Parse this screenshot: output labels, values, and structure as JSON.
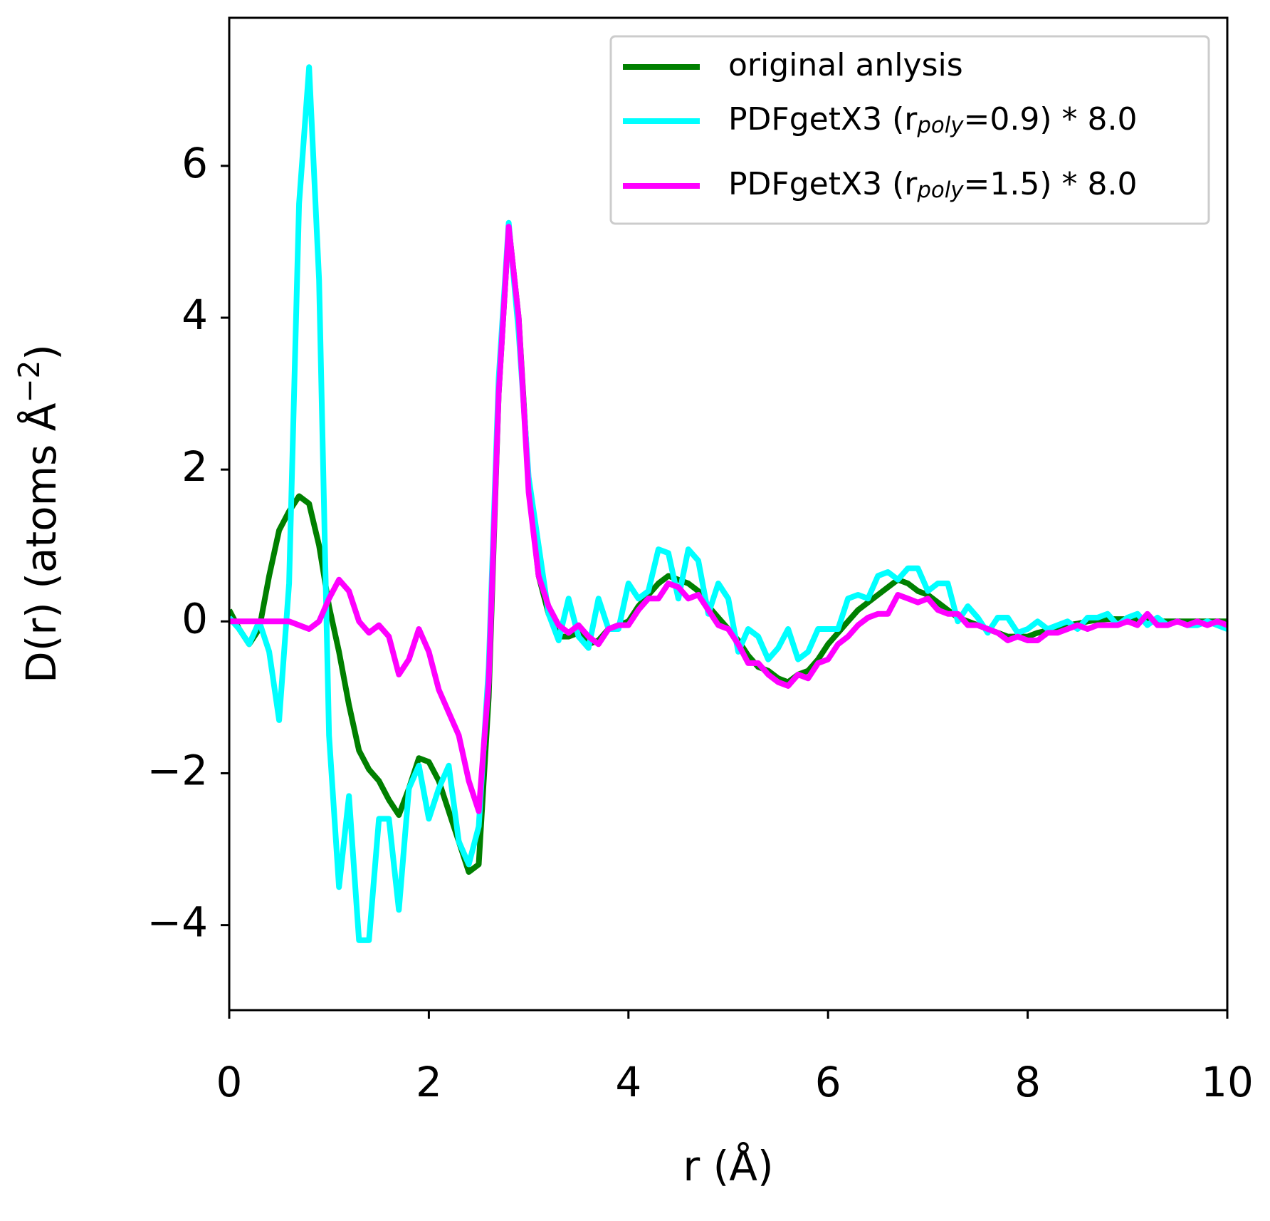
{
  "chart_data": {
    "type": "line",
    "xlabel": "r (Å)",
    "ylabel": "D(r) (atoms Å^{−2})",
    "x": [
      0,
      0.1,
      0.2,
      0.3,
      0.4,
      0.5,
      0.6,
      0.7,
      0.8,
      0.9,
      1,
      1.1,
      1.2,
      1.3,
      1.4,
      1.5,
      1.6,
      1.7,
      1.8,
      1.9,
      2,
      2.1,
      2.2,
      2.3,
      2.4,
      2.5,
      2.6,
      2.7,
      2.8,
      2.9,
      3,
      3.1,
      3.2,
      3.3,
      3.4,
      3.5,
      3.6,
      3.7,
      3.8,
      3.9,
      4,
      4.1,
      4.2,
      4.3,
      4.4,
      4.5,
      4.6,
      4.7,
      4.8,
      4.9,
      5,
      5.1,
      5.2,
      5.3,
      5.4,
      5.5,
      5.6,
      5.7,
      5.8,
      5.9,
      6,
      6.1,
      6.2,
      6.3,
      6.4,
      6.5,
      6.6,
      6.7,
      6.8,
      6.9,
      7,
      7.1,
      7.2,
      7.3,
      7.4,
      7.5,
      7.6,
      7.7,
      7.8,
      7.9,
      8,
      8.1,
      8.2,
      8.3,
      8.4,
      8.5,
      8.6,
      8.7,
      8.8,
      8.9,
      9,
      9.1,
      9.2,
      9.3,
      9.4,
      9.5,
      9.6,
      9.7,
      9.8,
      9.9,
      10
    ],
    "series": [
      {
        "name": "original anlysis",
        "color": "#008000",
        "values": [
          0.15,
          -0.1,
          -0.3,
          -0.1,
          0.6,
          1.2,
          1.45,
          1.65,
          1.55,
          1.0,
          0.2,
          -0.4,
          -1.1,
          -1.7,
          -1.95,
          -2.1,
          -2.35,
          -2.55,
          -2.2,
          -1.8,
          -1.85,
          -2.1,
          -2.5,
          -2.9,
          -3.3,
          -3.2,
          -1.0,
          3.0,
          5.2,
          4.0,
          1.8,
          0.6,
          0.1,
          -0.2,
          -0.2,
          -0.15,
          -0.3,
          -0.25,
          -0.1,
          -0.05,
          0.0,
          0.2,
          0.35,
          0.5,
          0.6,
          0.55,
          0.5,
          0.4,
          0.2,
          0.05,
          -0.1,
          -0.25,
          -0.45,
          -0.6,
          -0.65,
          -0.75,
          -0.8,
          -0.7,
          -0.65,
          -0.5,
          -0.3,
          -0.15,
          0.0,
          0.15,
          0.25,
          0.35,
          0.45,
          0.55,
          0.5,
          0.4,
          0.35,
          0.25,
          0.15,
          0.05,
          0.0,
          -0.05,
          -0.1,
          -0.15,
          -0.2,
          -0.2,
          -0.2,
          -0.15,
          -0.12,
          -0.1,
          -0.05,
          -0.03,
          0.0,
          0.02,
          0.03,
          0.03,
          0.03,
          0.02,
          0.0,
          0.0,
          0.0,
          0.0,
          0.0,
          0.0,
          0.0,
          0.0,
          0.0
        ]
      },
      {
        "name": "PDFgetX3 (r_{poly}=0.9) * 8.0",
        "color": "#00ffff",
        "values": [
          0.05,
          -0.1,
          -0.3,
          0.0,
          -0.4,
          -1.3,
          0.5,
          5.5,
          7.3,
          4.5,
          -1.5,
          -3.5,
          -2.3,
          -4.2,
          -4.2,
          -2.6,
          -2.6,
          -3.8,
          -2.2,
          -1.9,
          -2.6,
          -2.2,
          -1.9,
          -2.9,
          -3.2,
          -2.7,
          -0.6,
          3.2,
          5.25,
          3.8,
          1.9,
          1.0,
          0.1,
          -0.25,
          0.3,
          -0.2,
          -0.35,
          0.3,
          -0.1,
          -0.1,
          0.5,
          0.3,
          0.4,
          0.95,
          0.9,
          0.3,
          0.95,
          0.8,
          0.1,
          0.5,
          0.3,
          -0.4,
          -0.1,
          -0.2,
          -0.5,
          -0.35,
          -0.1,
          -0.5,
          -0.4,
          -0.1,
          -0.1,
          -0.1,
          0.3,
          0.35,
          0.3,
          0.6,
          0.65,
          0.55,
          0.7,
          0.7,
          0.4,
          0.5,
          0.5,
          0.0,
          0.2,
          0.05,
          -0.15,
          0.05,
          0.05,
          -0.15,
          -0.1,
          0.0,
          -0.1,
          -0.05,
          0.0,
          -0.1,
          0.05,
          0.05,
          0.1,
          -0.05,
          0.05,
          0.1,
          -0.05,
          0.05,
          -0.05,
          0.0,
          -0.05,
          -0.05,
          0.0,
          -0.05,
          -0.1
        ]
      },
      {
        "name": "PDFgetX3 (r_{poly}=1.5) * 8.0",
        "color": "#ff00ff",
        "values": [
          0,
          0,
          0,
          0,
          0,
          0,
          0,
          -0.05,
          -0.1,
          0.0,
          0.3,
          0.55,
          0.4,
          0.0,
          -0.15,
          -0.05,
          -0.2,
          -0.7,
          -0.5,
          -0.1,
          -0.4,
          -0.9,
          -1.2,
          -1.5,
          -2.1,
          -2.5,
          -0.8,
          3.0,
          5.2,
          4.0,
          1.7,
          0.6,
          0.2,
          -0.05,
          -0.15,
          -0.05,
          -0.2,
          -0.3,
          -0.1,
          -0.05,
          -0.05,
          0.15,
          0.3,
          0.3,
          0.5,
          0.45,
          0.3,
          0.35,
          0.15,
          -0.05,
          -0.1,
          -0.3,
          -0.55,
          -0.55,
          -0.7,
          -0.8,
          -0.85,
          -0.7,
          -0.75,
          -0.55,
          -0.5,
          -0.3,
          -0.2,
          -0.05,
          0.05,
          0.1,
          0.1,
          0.35,
          0.3,
          0.25,
          0.3,
          0.15,
          0.1,
          0.1,
          -0.05,
          -0.05,
          -0.1,
          -0.15,
          -0.25,
          -0.2,
          -0.25,
          -0.25,
          -0.15,
          -0.15,
          -0.1,
          -0.05,
          -0.1,
          -0.05,
          -0.05,
          -0.05,
          0.0,
          -0.05,
          0.1,
          -0.05,
          -0.05,
          0.0,
          -0.05,
          0.0,
          -0.05,
          0.0,
          -0.05
        ]
      }
    ],
    "xlim": [
      0,
      10
    ],
    "xticks": [
      0,
      2,
      4,
      6,
      8,
      10
    ],
    "ylim": [
      -5.12,
      7.95
    ],
    "yticks": [
      {
        "value": -4,
        "label": "−4"
      },
      {
        "value": -2,
        "label": "−2"
      },
      0,
      2,
      4,
      6
    ],
    "grid": false,
    "legend": "upper right"
  }
}
